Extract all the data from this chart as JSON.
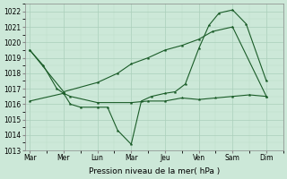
{
  "xlabel": "Pression niveau de la mer( hPa )",
  "bg_color": "#cce8d8",
  "grid_color_major": "#aacfba",
  "grid_color_minor": "#bbddc8",
  "line_color": "#1a5c28",
  "ylim": [
    1013,
    1022.5
  ],
  "yticks": [
    1013,
    1014,
    1015,
    1016,
    1017,
    1018,
    1019,
    1020,
    1021,
    1022
  ],
  "xtick_labels": [
    "Mar",
    "Mer",
    "Lun",
    "Mar",
    "Jeu",
    "Ven",
    "Sam",
    "Dim"
  ],
  "xtick_positions": [
    0,
    1,
    2,
    3,
    4,
    5,
    6,
    7
  ],
  "xlim": [
    -0.15,
    7.5
  ],
  "line1_x": [
    0,
    0.4,
    0.8,
    1.0,
    1.2,
    1.5,
    2.0,
    2.3,
    2.6,
    3.0,
    3.3,
    3.6,
    4.0,
    4.3,
    4.6,
    5.0,
    5.3,
    5.6,
    6.0,
    6.4,
    7.0
  ],
  "line1_y": [
    1019.5,
    1018.5,
    1017.0,
    1016.7,
    1016.0,
    1015.8,
    1015.8,
    1015.8,
    1014.3,
    1013.4,
    1016.2,
    1016.5,
    1016.7,
    1016.8,
    1017.3,
    1019.6,
    1021.1,
    1021.9,
    1022.1,
    1021.2,
    1017.5
  ],
  "line2_x": [
    0,
    1.0,
    1.2,
    2.0,
    3.0,
    3.5,
    4.0,
    4.5,
    5.0,
    5.5,
    6.0,
    6.5,
    7.0
  ],
  "line2_y": [
    1016.2,
    1016.7,
    1016.5,
    1016.1,
    1016.1,
    1016.2,
    1016.2,
    1016.4,
    1016.3,
    1016.4,
    1016.5,
    1016.6,
    1016.5
  ],
  "line3_x": [
    0,
    1.0,
    2.0,
    2.6,
    3.0,
    3.5,
    4.0,
    4.5,
    5.0,
    5.4,
    6.0,
    7.0
  ],
  "line3_y": [
    1019.5,
    1016.8,
    1017.4,
    1018.0,
    1018.6,
    1019.0,
    1019.5,
    1019.8,
    1020.2,
    1020.7,
    1021.0,
    1016.5
  ]
}
